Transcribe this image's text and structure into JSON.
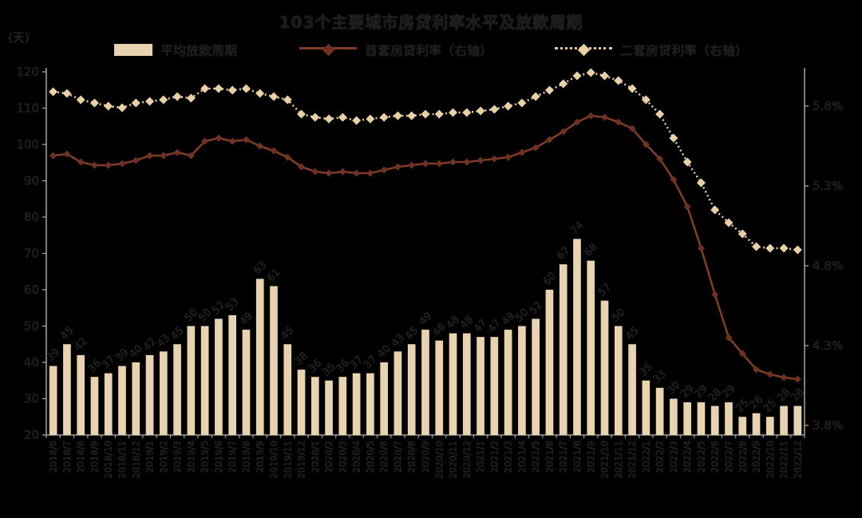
{
  "title": "103个主要城市房贷利率水平及放款周期",
  "left_axis_unit": "(天)",
  "legend": {
    "bar_label": "平均放款周期",
    "line1_label": "首套房贷利率（右轴）",
    "line2_label": "二套房贷利率（右轴）"
  },
  "colors": {
    "background": "#000000",
    "bar_fill": "#e8d2af",
    "line1": "#7f3c27",
    "line1_marker": "#6f3220",
    "line2": "#e4caa1",
    "line2_marker": "#e9d0a6",
    "axis": "#9c9c9c",
    "text": "#1a1a1a"
  },
  "chart_data": {
    "type": "bar+line combo",
    "title": "103个主要城市房贷利率水平及放款周期",
    "x": [
      "2018/6",
      "2018/7",
      "2018/8",
      "2018/9",
      "2018/10",
      "2018/11",
      "2018/12",
      "2019/1",
      "2019/2",
      "2019/3",
      "2019/4",
      "2019/5",
      "2019/6",
      "2019/7",
      "2019/8",
      "2019/9",
      "2019/10",
      "2019/11",
      "2019/12",
      "2020/1",
      "2020/2",
      "2020/3",
      "2020/4",
      "2020/5",
      "2020/6",
      "2020/7",
      "2020/8",
      "2020/9",
      "2020/10",
      "2020/11",
      "2020/12",
      "2021/1",
      "2021/2",
      "2021/3",
      "2021/4",
      "2021/5",
      "2021/6",
      "2021/7",
      "2021/8",
      "2021/9",
      "2021/10",
      "2021/11",
      "2021/12",
      "2022/1",
      "2022/2",
      "2022/3",
      "2022/4",
      "2022/5",
      "2022/6",
      "2022/7",
      "2022/8",
      "2022/9",
      "2022/10",
      "2022/11",
      "2022/12"
    ],
    "series": [
      {
        "name": "平均放款周期",
        "type": "bar",
        "axis": "left",
        "unit": "天",
        "values": [
          39,
          45,
          42,
          36,
          37,
          39,
          40,
          42,
          43,
          45,
          50,
          50,
          52,
          53,
          49,
          63,
          61,
          45,
          38,
          36,
          35,
          36,
          37,
          37,
          40,
          43,
          45,
          49,
          46,
          48,
          48,
          47,
          47,
          49,
          50,
          52,
          60,
          67,
          74,
          68,
          57,
          50,
          45,
          35,
          33,
          30,
          29,
          29,
          28,
          29,
          25,
          26,
          25,
          28,
          28
        ]
      },
      {
        "name": "首套房贷利率（右轴）",
        "type": "line",
        "axis": "right",
        "unit": "%",
        "values": [
          5.49,
          5.5,
          5.45,
          5.43,
          5.43,
          5.44,
          5.46,
          5.49,
          5.49,
          5.51,
          5.49,
          5.58,
          5.6,
          5.58,
          5.59,
          5.55,
          5.52,
          5.48,
          5.42,
          5.39,
          5.38,
          5.39,
          5.38,
          5.38,
          5.4,
          5.42,
          5.43,
          5.44,
          5.44,
          5.45,
          5.45,
          5.46,
          5.47,
          5.48,
          5.51,
          5.54,
          5.59,
          5.64,
          5.7,
          5.74,
          5.73,
          5.7,
          5.66,
          5.56,
          5.47,
          5.34,
          5.17,
          4.91,
          4.62,
          4.35,
          4.25,
          4.15,
          4.12,
          4.1,
          4.09
        ]
      },
      {
        "name": "二套房贷利率（右轴）",
        "type": "line-dotted",
        "axis": "right",
        "unit": "%",
        "values": [
          5.89,
          5.88,
          5.84,
          5.82,
          5.8,
          5.79,
          5.82,
          5.83,
          5.84,
          5.86,
          5.85,
          5.91,
          5.91,
          5.9,
          5.91,
          5.88,
          5.86,
          5.84,
          5.75,
          5.73,
          5.72,
          5.73,
          5.71,
          5.72,
          5.73,
          5.74,
          5.74,
          5.75,
          5.75,
          5.76,
          5.76,
          5.77,
          5.78,
          5.8,
          5.82,
          5.86,
          5.9,
          5.94,
          5.99,
          6.01,
          5.99,
          5.96,
          5.91,
          5.84,
          5.75,
          5.6,
          5.45,
          5.32,
          5.15,
          5.07,
          5.0,
          4.92,
          4.91,
          4.91,
          4.9
        ]
      }
    ],
    "left_axis": {
      "unit": "(天)",
      "min": 20,
      "max": 120,
      "step": 10,
      "tick_labels": [
        "120",
        "110",
        "100",
        "90",
        "80",
        "70",
        "60",
        "50",
        "40",
        "30",
        "20"
      ]
    },
    "right_axis": {
      "tick_labels": [
        "5.8%",
        "5.3%",
        "4.8%",
        "4.3%",
        "3.8%"
      ],
      "tick_values": [
        5.8,
        5.3,
        4.8,
        4.3,
        3.8
      ]
    },
    "grid": false,
    "legend_position": "top",
    "bar_value_labels_shown": true
  }
}
